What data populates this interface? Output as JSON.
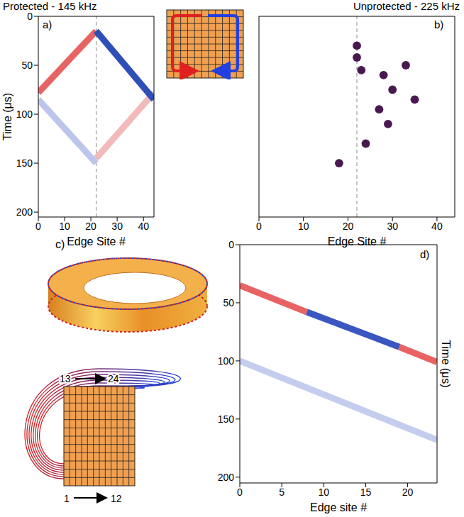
{
  "chart_data": [
    {
      "type": "line",
      "panel": "a)",
      "title": "Protected - 145 kHz",
      "x_label": "Edge Site #",
      "y_label": "Time (μs)",
      "xlim": [
        0,
        44
      ],
      "xticks": [
        0,
        10,
        20,
        30,
        40
      ],
      "ylim": [
        0,
        205
      ],
      "yticks": [
        0,
        50,
        100,
        150,
        200
      ],
      "dashed_line_x": 22,
      "series": [
        {
          "color": "#f2baba",
          "x": [
            44,
            22
          ],
          "values": [
            78,
            145
          ]
        },
        {
          "color": "#bcc6ec",
          "x": [
            0,
            22
          ],
          "values": [
            85,
            150
          ]
        },
        {
          "color": "#e86464",
          "x": [
            22,
            0
          ],
          "values": [
            15,
            78
          ]
        },
        {
          "color": "#2f4fb8",
          "x": [
            22,
            44
          ],
          "values": [
            15,
            85
          ]
        }
      ]
    },
    {
      "type": "scatter",
      "panel": "b)",
      "title": "Unprotected - 225 kHz",
      "x_label": "Edge Site #",
      "xlim": [
        0,
        44
      ],
      "xticks": [
        0,
        10,
        20,
        30,
        40
      ],
      "ylim": [
        0,
        205
      ],
      "yticks": [
        0,
        50,
        100,
        150,
        200
      ],
      "tick_labels": "x",
      "dashed_line_x": 22,
      "series": [
        {
          "color": "#4a1850",
          "x": [
            22,
            22,
            23,
            28,
            30,
            33,
            27,
            29,
            24,
            18,
            35
          ],
          "values": [
            30,
            42,
            55,
            60,
            75,
            50,
            95,
            110,
            130,
            150,
            85
          ]
        }
      ]
    },
    {
      "type": "line",
      "panel": "d)",
      "x_label": "Edge site #",
      "y_label": "Time (μs)",
      "xlim": [
        0,
        23.5
      ],
      "xticks": [
        0,
        5,
        10,
        15,
        20
      ],
      "ylim": [
        0,
        205
      ],
      "yticks": [
        0,
        50,
        100,
        150,
        200
      ],
      "series": [
        {
          "color": "#c4cdee",
          "x": [
            0,
            23.5
          ],
          "values": [
            100,
            168
          ]
        },
        {
          "color": "#e86464",
          "x": [
            0,
            8
          ],
          "values": [
            35,
            58
          ]
        },
        {
          "color": "#3a56c0",
          "x": [
            8,
            19
          ],
          "values": [
            58,
            88
          ]
        },
        {
          "color": "#e86464",
          "x": [
            19,
            23.5
          ],
          "values": [
            88,
            101
          ]
        }
      ]
    }
  ],
  "panel_c": {
    "panel": "c)",
    "top_start": "13",
    "top_end": "24",
    "bottom_start": "1",
    "bottom_end": "12"
  }
}
